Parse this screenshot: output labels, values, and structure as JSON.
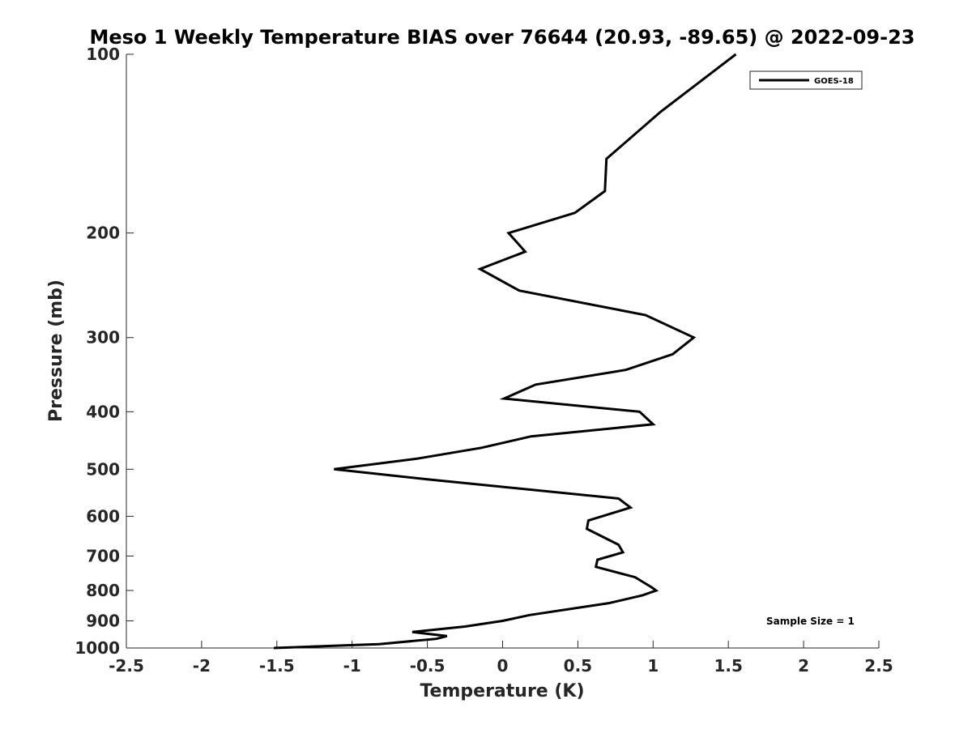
{
  "chart_data": {
    "type": "line",
    "title": "Meso 1 Weekly Temperature BIAS over 76644 (20.93, -89.65) @ 2022-09-23",
    "xlabel": "Temperature (K)",
    "ylabel": "Pressure (mb)",
    "xlim": [
      -2.5,
      2.5
    ],
    "ylim": [
      100,
      1000
    ],
    "y_scale": "log",
    "y_reversed": true,
    "x_ticks": [
      -2.5,
      -2,
      -1.5,
      -1,
      -0.5,
      0,
      0.5,
      1,
      1.5,
      2,
      2.5
    ],
    "x_tick_labels": [
      "-2.5",
      "-2",
      "-1.5",
      "-1",
      "-0.5",
      "0",
      "0.5",
      "1",
      "1.5",
      "2",
      "2.5"
    ],
    "y_ticks": [
      100,
      200,
      300,
      400,
      500,
      600,
      700,
      800,
      900,
      1000
    ],
    "y_tick_labels": [
      "100",
      "200",
      "300",
      "400",
      "500",
      "600",
      "700",
      "800",
      "900",
      "1000"
    ],
    "grid": false,
    "legend_position": "top-right",
    "annotation": "Sample Size = 1",
    "line_color": "#000000",
    "series": [
      {
        "name": "GOES-18",
        "points": [
          [
            1.55,
            100
          ],
          [
            1.05,
            125
          ],
          [
            0.69,
            150
          ],
          [
            0.68,
            170
          ],
          [
            0.48,
            185
          ],
          [
            0.04,
            200
          ],
          [
            0.15,
            215
          ],
          [
            -0.15,
            230
          ],
          [
            0.11,
            250
          ],
          [
            0.95,
            275
          ],
          [
            1.27,
            300
          ],
          [
            1.13,
            320
          ],
          [
            0.82,
            340
          ],
          [
            0.22,
            360
          ],
          [
            0.01,
            380
          ],
          [
            0.91,
            400
          ],
          [
            1.0,
            420
          ],
          [
            0.19,
            440
          ],
          [
            -0.14,
            460
          ],
          [
            -0.57,
            480
          ],
          [
            -1.12,
            500
          ],
          [
            -0.5,
            520
          ],
          [
            0.77,
            560
          ],
          [
            0.85,
            580
          ],
          [
            0.57,
            610
          ],
          [
            0.56,
            630
          ],
          [
            0.77,
            670
          ],
          [
            0.8,
            690
          ],
          [
            0.63,
            710
          ],
          [
            0.62,
            730
          ],
          [
            0.88,
            760
          ],
          [
            0.99,
            790
          ],
          [
            1.02,
            800
          ],
          [
            0.93,
            815
          ],
          [
            0.71,
            840
          ],
          [
            0.18,
            880
          ],
          [
            0.0,
            900
          ],
          [
            -0.25,
            920
          ],
          [
            -0.6,
            940
          ],
          [
            -0.37,
            955
          ],
          [
            -0.44,
            965
          ],
          [
            -0.82,
            985
          ],
          [
            -1.52,
            1000
          ]
        ]
      }
    ]
  }
}
